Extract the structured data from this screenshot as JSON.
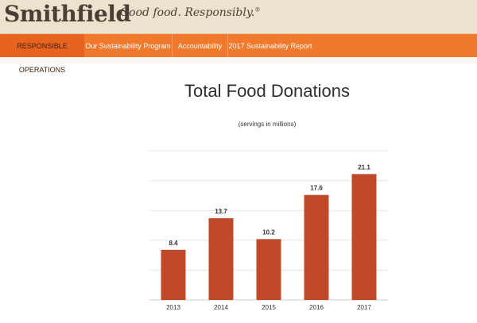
{
  "brand": {
    "name": "Smithfield",
    "tagline": "Good food. Responsibly.",
    "tagline_mark": "®"
  },
  "nav": {
    "items": [
      {
        "label": "RESPONSIBLE OPERATIONS",
        "active": true
      },
      {
        "label": "Our Sustainability Program",
        "active": false
      },
      {
        "label": "Accountability",
        "active": false
      },
      {
        "label": "2017 Sustainability Report",
        "active": false
      }
    ]
  },
  "colors": {
    "nav_bg": "#f0792c",
    "nav_active_bg": "#e8631e",
    "header_bg": "#ece3cf",
    "bar": "#c0492a"
  },
  "chart_data": {
    "type": "bar",
    "title": "Total Food Donations",
    "subtitle": "(servings in millions)",
    "categories": [
      "2013",
      "2014",
      "2015",
      "2016",
      "2017"
    ],
    "values": [
      8.4,
      13.7,
      10.2,
      17.6,
      21.1
    ],
    "data_labels": [
      "8.4",
      "13.7",
      "10.2",
      "17.6",
      "21.1"
    ],
    "ylim": [
      0,
      25
    ],
    "grid": true,
    "legend": "none"
  }
}
